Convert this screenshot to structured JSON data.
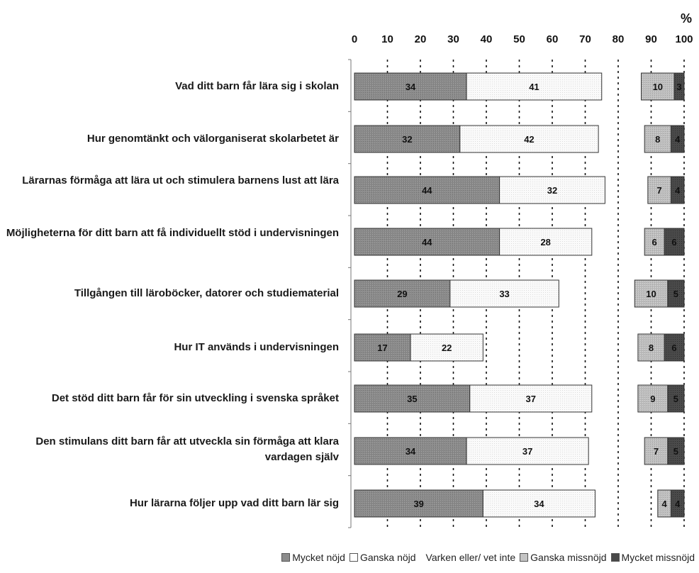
{
  "chart_data": {
    "type": "bar",
    "stacked": true,
    "orientation": "horizontal",
    "unit_label": "%",
    "xlim": [
      0,
      100
    ],
    "x_ticks": [
      "0",
      "10",
      "20",
      "30",
      "40",
      "50",
      "60",
      "70",
      "80",
      "90",
      "100"
    ],
    "grid": "dotted vertical",
    "legend_position": "bottom",
    "categories": [
      "Vad ditt barn får lära sig i skolan",
      "Hur genomtänkt och välorganiserat skolarbetet är",
      "Lärarnas förmåga att lära ut och stimulera barnens lust att lära",
      "Möjligheterna för ditt barn att få individuellt stöd i undervisningen",
      "Tillgången till läroböcker, datorer och studiematerial",
      "Hur IT används i undervisningen",
      "Det stöd ditt barn får för sin utveckling i svenska språket",
      "Den stimulans ditt barn får att utveckla sin förmåga att klara vardagen själv",
      "Hur lärarna följer upp vad ditt barn lär sig"
    ],
    "series": [
      {
        "name": "Mycket nöjd",
        "color": "#8c8c8c",
        "values": [
          34,
          32,
          44,
          44,
          29,
          17,
          35,
          34,
          39
        ]
      },
      {
        "name": "Ganska nöjd",
        "color": "#ffffff",
        "values": [
          41,
          42,
          32,
          28,
          33,
          22,
          37,
          37,
          34
        ]
      },
      {
        "name": "Varken eller/ vet inte",
        "color": null,
        "values": [
          null,
          null,
          null,
          null,
          null,
          null,
          null,
          null,
          null
        ]
      },
      {
        "name": "Ganska missnöjd",
        "color": "#b8b8b8",
        "values": [
          10,
          8,
          7,
          6,
          10,
          8,
          9,
          7,
          4
        ]
      },
      {
        "name": "Mycket missnöjd",
        "color": "#4a4a4a",
        "values": [
          3,
          4,
          4,
          6,
          5,
          6,
          5,
          5,
          4
        ]
      }
    ]
  }
}
